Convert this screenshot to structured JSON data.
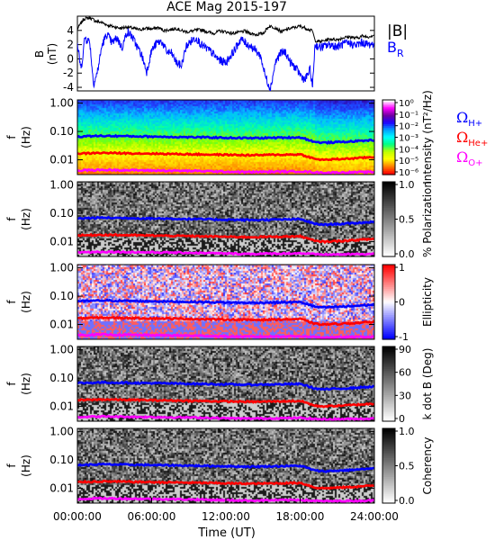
{
  "chart_data": {
    "type": "line",
    "title": "ACE Mag 2015-197",
    "xlabel": "Time (UT)",
    "x_ticks": [
      "00:00:00",
      "06:00:00",
      "12:00:00",
      "18:00:00",
      "24:00:00"
    ],
    "xlim_hours": [
      0,
      24
    ],
    "panels": [
      {
        "id": "field",
        "ylabel": [
          "B",
          "(nT)"
        ],
        "ylim": [
          -4.5,
          6
        ],
        "y_ticks": [
          -4,
          -2,
          0,
          2,
          4
        ],
        "legend": [
          "|B|",
          "B_R"
        ],
        "series": [
          {
            "name": "|B|",
            "color": "#000000",
            "x": [
              0,
              0.5,
              1,
              1.5,
              2,
              2.5,
              3,
              3.5,
              4,
              4.5,
              5,
              5.5,
              6,
              6.5,
              7,
              7.5,
              8,
              8.5,
              9,
              9.5,
              10,
              10.5,
              11,
              11.5,
              12,
              12.5,
              13,
              13.5,
              14,
              14.5,
              15,
              15.5,
              16,
              16.5,
              17,
              17.5,
              18,
              18.5,
              19,
              19.2,
              19.6,
              20,
              20.5,
              21,
              21.5,
              22,
              22.5,
              23,
              23.5,
              24
            ],
            "y": [
              4.2,
              5.6,
              5.8,
              5.3,
              5.1,
              4.7,
              4.5,
              4.3,
              4.5,
              4.3,
              4.1,
              4.3,
              4.2,
              4.4,
              4.0,
              4.1,
              4.3,
              3.9,
              3.8,
              4.0,
              4.1,
              3.8,
              3.6,
              3.9,
              3.8,
              3.6,
              3.7,
              3.9,
              3.6,
              3.4,
              3.6,
              4.6,
              4.4,
              3.8,
              4.2,
              4.4,
              4.6,
              4.3,
              3.9,
              2.6,
              2.4,
              2.6,
              2.8,
              2.7,
              3.0,
              3.1,
              2.9,
              3.2,
              3.1,
              3.4
            ]
          },
          {
            "name": "B_R",
            "color": "#0000ff",
            "x": [
              0,
              0.3,
              0.6,
              1,
              1.3,
              1.6,
              2,
              2.4,
              2.8,
              3.2,
              3.6,
              4,
              4.4,
              4.8,
              5.2,
              5.6,
              6,
              6.4,
              6.8,
              7.2,
              7.6,
              8,
              8.4,
              8.8,
              9.2,
              9.6,
              10,
              10.4,
              10.8,
              11.2,
              11.6,
              12,
              12.4,
              12.8,
              13.2,
              13.6,
              14,
              14.4,
              14.8,
              15.2,
              15.6,
              16,
              16.4,
              16.8,
              17.2,
              17.6,
              18,
              18.4,
              18.8,
              19,
              19.2,
              19.6,
              20,
              20.5,
              21,
              21.5,
              22,
              22.5,
              23,
              23.5,
              24
            ],
            "y": [
              2.0,
              -1.5,
              3.0,
              2.4,
              -3.5,
              -2.0,
              2.0,
              3.5,
              2.2,
              3.0,
              1.5,
              3.8,
              3.2,
              1.8,
              0.5,
              -1.8,
              1.2,
              2.2,
              2.5,
              1.0,
              0.8,
              -0.5,
              -1.0,
              1.8,
              2.5,
              3.0,
              2.0,
              1.5,
              1.0,
              0.2,
              -0.3,
              -0.5,
              0.5,
              1.5,
              2.8,
              2.2,
              1.8,
              1.2,
              0.4,
              -2.5,
              -4.2,
              -0.5,
              0.8,
              1.0,
              -0.5,
              -1.2,
              -2.2,
              -3.0,
              -1.5,
              -4.0,
              2.0,
              1.6,
              1.8,
              2.0,
              1.7,
              2.1,
              2.2,
              1.9,
              2.3,
              2.0,
              2.2
            ]
          }
        ]
      },
      {
        "id": "intensity",
        "ylabel": [
          "f",
          "(Hz)"
        ],
        "colorbar_label": "Intensity (nT²/Hz)",
        "colorbar_ticks": [
          "10⁰",
          "10⁻¹",
          "10⁻²",
          "10⁻³",
          "10⁻⁴",
          "10⁻⁵",
          "10⁻⁶"
        ],
        "legend": [
          "Ω_H+",
          "Ω_He+",
          "Ω_O+"
        ]
      },
      {
        "id": "polarization",
        "ylabel": [
          "f",
          "(Hz)"
        ],
        "colorbar_label": "% Polarization",
        "colorbar_ticks": [
          "1.0",
          "0.5",
          "0.0"
        ]
      },
      {
        "id": "ellipticity",
        "ylabel": [
          "f",
          "(Hz)"
        ],
        "colorbar_label": "Ellipticity",
        "colorbar_ticks": [
          "1",
          "0",
          "-1"
        ]
      },
      {
        "id": "kdotb",
        "ylabel": [
          "f",
          "(Hz)"
        ],
        "colorbar_label": "k dot B (Deg)",
        "colorbar_ticks": [
          "90",
          "60",
          "30",
          "0"
        ]
      },
      {
        "id": "coherency",
        "ylabel": [
          "f",
          "(Hz)"
        ],
        "colorbar_label": "Coherency",
        "colorbar_ticks": [
          "1.0",
          "0.5",
          "0.0"
        ]
      }
    ],
    "freq_axis": {
      "scale": "log",
      "ylim": [
        0.003,
        1.3
      ],
      "ticks": [
        "1.00",
        "0.10",
        "0.01"
      ]
    },
    "gyrofrequency_lines": [
      {
        "name": "Ω_H+",
        "color": "#0000ff",
        "x": [
          0,
          2,
          4,
          6,
          8,
          10,
          12,
          14,
          16,
          18,
          19.2,
          20,
          22,
          24
        ],
        "y": [
          0.066,
          0.07,
          0.068,
          0.066,
          0.064,
          0.062,
          0.06,
          0.058,
          0.06,
          0.062,
          0.042,
          0.04,
          0.044,
          0.05
        ]
      },
      {
        "name": "Ω_He+",
        "color": "#ff0000",
        "x": [
          0,
          2,
          4,
          6,
          8,
          10,
          12,
          14,
          16,
          18,
          19.2,
          20,
          22,
          24
        ],
        "y": [
          0.0165,
          0.0175,
          0.017,
          0.0165,
          0.016,
          0.0155,
          0.015,
          0.0145,
          0.015,
          0.0155,
          0.0105,
          0.01,
          0.011,
          0.0125
        ]
      },
      {
        "name": "Ω_O+",
        "color": "#ff00ff",
        "x": [
          0,
          2,
          4,
          6,
          8,
          10,
          12,
          14,
          16,
          18,
          19.2,
          20,
          22,
          24
        ],
        "y": [
          0.0042,
          0.0044,
          0.0043,
          0.0042,
          0.0041,
          0.004,
          0.0038,
          0.0037,
          0.0038,
          0.0039,
          0.0036,
          0.0035,
          0.0036,
          0.0037
        ]
      }
    ],
    "colormaps": {
      "intensity": [
        "#ffffff",
        "#ff00ff",
        "#7000a0",
        "#2000ff",
        "#00a0ff",
        "#00ffff",
        "#00ff80",
        "#c0ff00",
        "#ffff00",
        "#ff8000",
        "#ff0000"
      ],
      "gray": [
        "#ffffff",
        "#000000"
      ],
      "ellipticity": [
        "#0000ff",
        "#ffffff",
        "#ff0000"
      ]
    }
  }
}
